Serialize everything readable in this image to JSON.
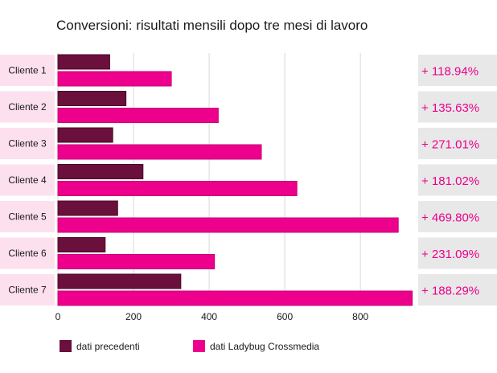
{
  "chart_data": {
    "type": "bar",
    "orientation": "horizontal",
    "title": "Conversioni: risultati mensili dopo tre mesi di lavoro",
    "categories": [
      "Cliente 1",
      "Cliente 2",
      "Cliente 3",
      "Cliente 4",
      "Cliente 5",
      "Cliente 6",
      "Cliente 7"
    ],
    "series": [
      {
        "name": "dati precedenti",
        "color": "#6b0f3c",
        "values": [
          137,
          180,
          145,
          225,
          158,
          125,
          325
        ]
      },
      {
        "name": "dati Ladybug Crossmedia",
        "color": "#ec008c",
        "values": [
          300,
          424,
          538,
          632,
          900,
          414,
          937
        ]
      }
    ],
    "annotations": [
      "+ 118.94%",
      "+ 135.63%",
      "+ 271.01%",
      "+ 181.02%",
      "+ 469.80%",
      "+ 231.09%",
      "+ 188.29%"
    ],
    "xticks": [
      0,
      200,
      400,
      600,
      800
    ],
    "xlim": [
      0,
      940
    ],
    "grid": true,
    "legend_position": "bottom"
  },
  "colors": {
    "category_bg": "#fde0ee",
    "annotation_bg": "#e8e8e8",
    "annotation_text": "#ec008c",
    "grid": "#d9d9d9"
  }
}
